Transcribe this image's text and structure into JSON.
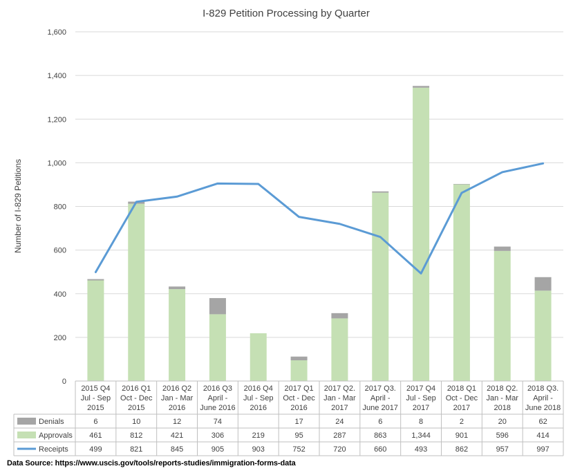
{
  "chart_data": {
    "type": "bar",
    "title": "I-829 Petition Processing by Quarter",
    "ylabel": "Number of I-829 Petitions",
    "xlabel": "",
    "ylim": [
      0,
      1600
    ],
    "yticks": [
      0,
      200,
      400,
      600,
      800,
      1000,
      1200,
      1400,
      1600
    ],
    "ytick_labels": [
      "0",
      "200",
      "400",
      "600",
      "800",
      "1,000",
      "1,200",
      "1,400",
      "1,600"
    ],
    "categories": [
      [
        "2015 Q4",
        "Jul - Sep",
        "2015"
      ],
      [
        "2016 Q1",
        "Oct - Dec",
        "2015"
      ],
      [
        "2016 Q2",
        "Jan - Mar",
        "2016"
      ],
      [
        "2016 Q3",
        "April -",
        "June 2016"
      ],
      [
        "2016 Q4",
        "Jul - Sep",
        "2016"
      ],
      [
        "2017 Q1",
        "Oct - Dec",
        "2016"
      ],
      [
        "2017 Q2.",
        "Jan - Mar",
        "2017"
      ],
      [
        "2017 Q3.",
        "April -",
        "June 2017"
      ],
      [
        "2017 Q4",
        "Jul - Sep",
        "2017"
      ],
      [
        "2018 Q1",
        "Oct - Dec",
        "2017"
      ],
      [
        "2018 Q2.",
        "Jan - Mar",
        "2018"
      ],
      [
        "2018 Q3.",
        "April -",
        "June 2018"
      ]
    ],
    "series": [
      {
        "name": "Denials",
        "kind": "stacked-bar",
        "color": "#a5a5a5",
        "values": [
          6,
          10,
          12,
          74,
          null,
          17,
          24,
          6,
          8,
          2,
          20,
          62
        ],
        "labels": [
          "6",
          "10",
          "12",
          "74",
          "",
          "17",
          "24",
          "6",
          "8",
          "2",
          "20",
          "62"
        ]
      },
      {
        "name": "Approvals",
        "kind": "stacked-bar",
        "color": "#c5e0b4",
        "values": [
          461,
          812,
          421,
          306,
          219,
          95,
          287,
          863,
          1344,
          901,
          596,
          414
        ],
        "labels": [
          "461",
          "812",
          "421",
          "306",
          "219",
          "95",
          "287",
          "863",
          "1,344",
          "901",
          "596",
          "414"
        ]
      },
      {
        "name": "Receipts",
        "kind": "line",
        "color": "#5b9bd5",
        "values": [
          499,
          821,
          845,
          905,
          903,
          752,
          720,
          660,
          493,
          862,
          957,
          997
        ],
        "labels": [
          "499",
          "821",
          "845",
          "905",
          "903",
          "752",
          "720",
          "660",
          "493",
          "862",
          "957",
          "997"
        ]
      }
    ],
    "legend": "data-table-below"
  },
  "footer": {
    "source": "Data Source: https://www.uscis.gov/tools/reports-studies/immigration-forms-data"
  }
}
